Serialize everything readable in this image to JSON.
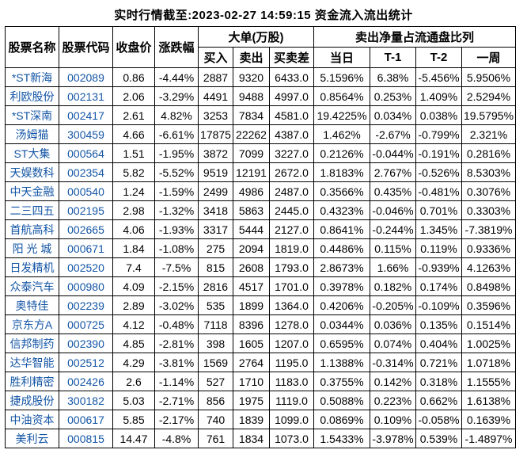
{
  "title": "实时行情截至:2023-02-27 14:59:15 资金流入流出统计",
  "colors": {
    "stock_link_blue": "#1355a5",
    "table_border": "#000000",
    "background": "#ffffff"
  },
  "table": {
    "header": {
      "stock_name": "股票名称",
      "stock_code": "股票代码",
      "close_price": "收盘价",
      "change_pct": "涨跌幅",
      "big_orders_group": "大单(万股)",
      "buy": "买入",
      "sell": "卖出",
      "buy_sell_diff": "买卖差",
      "net_sell_ratio_group": "卖出净量占流通盘比列",
      "day": "当日",
      "t_minus_1": "T-1",
      "t_minus_2": "T-2",
      "week": "一周"
    },
    "rows": [
      [
        "*ST新海",
        "002089",
        "0.86",
        "-4.44%",
        "2887",
        "9320",
        "6433.0",
        "5.1596%",
        "6.38%",
        "-5.456%",
        "5.9506%"
      ],
      [
        "利欧股份",
        "002131",
        "2.06",
        "-3.29%",
        "4491",
        "9488",
        "4997.0",
        "0.8564%",
        "0.253%",
        "1.409%",
        "2.5294%"
      ],
      [
        "*ST深南",
        "002417",
        "2.61",
        "4.82%",
        "3253",
        "7834",
        "4581.0",
        "19.4225%",
        "0.034%",
        "0.038%",
        "19.5795%"
      ],
      [
        "汤姆猫",
        "300459",
        "4.66",
        "-6.61%",
        "17875",
        "22262",
        "4387.0",
        "1.462%",
        "-2.67%",
        "-0.799%",
        "2.321%"
      ],
      [
        "ST大集",
        "000564",
        "1.51",
        "-1.95%",
        "3872",
        "7099",
        "3227.0",
        "0.2126%",
        "-0.044%",
        "-0.191%",
        "0.2816%"
      ],
      [
        "天娱数科",
        "002354",
        "5.82",
        "-5.52%",
        "9519",
        "12191",
        "2672.0",
        "1.8183%",
        "2.767%",
        "-0.526%",
        "8.5303%"
      ],
      [
        "中天金融",
        "000540",
        "1.24",
        "-1.59%",
        "2499",
        "4986",
        "2487.0",
        "0.3566%",
        "0.435%",
        "-0.481%",
        "0.3076%"
      ],
      [
        "二三四五",
        "002195",
        "2.98",
        "-1.32%",
        "3418",
        "5863",
        "2445.0",
        "0.4323%",
        "-0.046%",
        "0.701%",
        "0.3303%"
      ],
      [
        "首航高科",
        "002665",
        "4.06",
        "-1.93%",
        "3317",
        "5444",
        "2127.0",
        "0.8641%",
        "-0.244%",
        "1.345%",
        "-7.3819%"
      ],
      [
        "阳 光 城",
        "000671",
        "1.84",
        "-1.08%",
        "275",
        "2094",
        "1819.0",
        "0.4486%",
        "0.115%",
        "0.119%",
        "0.9336%"
      ],
      [
        "日发精机",
        "002520",
        "7.4",
        "-7.5%",
        "815",
        "2608",
        "1793.0",
        "2.8673%",
        "1.66%",
        "-0.939%",
        "4.1263%"
      ],
      [
        "众泰汽车",
        "000980",
        "4.09",
        "-2.15%",
        "2816",
        "4517",
        "1701.0",
        "0.3978%",
        "0.182%",
        "0.174%",
        "0.8498%"
      ],
      [
        "奥特佳",
        "002239",
        "2.89",
        "-3.02%",
        "535",
        "1899",
        "1364.0",
        "0.4206%",
        "-0.205%",
        "-0.109%",
        "0.3596%"
      ],
      [
        "京东方A",
        "000725",
        "4.12",
        "-0.48%",
        "7118",
        "8396",
        "1278.0",
        "0.0344%",
        "0.036%",
        "0.135%",
        "0.1514%"
      ],
      [
        "信邦制药",
        "002390",
        "4.85",
        "-2.81%",
        "398",
        "1605",
        "1207.0",
        "0.6595%",
        "0.074%",
        "0.404%",
        "1.0025%"
      ],
      [
        "达华智能",
        "002512",
        "4.29",
        "-3.81%",
        "1569",
        "2764",
        "1195.0",
        "1.1388%",
        "-0.314%",
        "0.721%",
        "1.0718%"
      ],
      [
        "胜利精密",
        "002426",
        "2.6",
        "-1.14%",
        "527",
        "1710",
        "1183.0",
        "0.3755%",
        "0.142%",
        "0.318%",
        "1.1555%"
      ],
      [
        "捷成股份",
        "300182",
        "5.03",
        "-2.71%",
        "856",
        "1975",
        "1119.0",
        "0.5088%",
        "0.223%",
        "0.662%",
        "1.6138%"
      ],
      [
        "中油资本",
        "000617",
        "5.85",
        "-2.17%",
        "740",
        "1839",
        "1099.0",
        "0.0869%",
        "0.109%",
        "-0.058%",
        "0.1639%"
      ],
      [
        "美利云",
        "000815",
        "14.47",
        "-4.8%",
        "761",
        "1834",
        "1073.0",
        "1.5433%",
        "-3.978%",
        "0.539%",
        "-1.4897%"
      ]
    ]
  }
}
